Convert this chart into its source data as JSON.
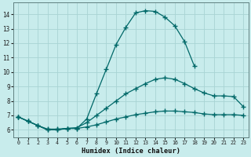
{
  "xlabel": "Humidex (Indice chaleur)",
  "bg_color": "#c8ecec",
  "line_color": "#006868",
  "grid_color": "#a8d4d4",
  "spine_color": "#608080",
  "xlim": [
    -0.5,
    23.5
  ],
  "ylim": [
    5.5,
    14.8
  ],
  "xticks": [
    0,
    1,
    2,
    3,
    4,
    5,
    6,
    7,
    8,
    9,
    10,
    11,
    12,
    13,
    14,
    15,
    16,
    17,
    18,
    19,
    20,
    21,
    22,
    23
  ],
  "yticks": [
    6,
    7,
    8,
    9,
    10,
    11,
    12,
    13,
    14
  ],
  "line1_x": [
    0,
    1,
    2,
    3,
    4,
    5,
    6,
    7,
    8,
    9,
    10,
    11,
    12,
    13,
    14,
    15,
    16,
    17,
    18
  ],
  "line1_y": [
    6.9,
    6.6,
    6.3,
    6.0,
    6.0,
    6.1,
    6.1,
    6.75,
    8.5,
    10.2,
    11.9,
    13.1,
    14.1,
    14.25,
    14.2,
    13.8,
    13.2,
    12.1,
    10.4
  ],
  "line2_x": [
    0,
    1,
    2,
    3,
    4,
    5,
    6,
    7,
    8,
    9,
    10,
    11,
    12,
    13,
    14,
    15,
    16,
    17,
    18,
    19,
    20,
    21,
    22,
    23
  ],
  "line2_y": [
    6.9,
    6.6,
    6.3,
    6.05,
    6.05,
    6.1,
    6.15,
    6.5,
    7.0,
    7.5,
    8.0,
    8.5,
    8.85,
    9.2,
    9.5,
    9.6,
    9.5,
    9.2,
    8.85,
    8.55,
    8.35,
    8.35,
    8.3,
    7.6
  ],
  "line3_x": [
    0,
    1,
    2,
    3,
    4,
    5,
    6,
    7,
    8,
    9,
    10,
    11,
    12,
    13,
    14,
    15,
    16,
    17,
    18,
    19,
    20,
    21,
    22,
    23
  ],
  "line3_y": [
    6.9,
    6.6,
    6.3,
    6.0,
    6.0,
    6.1,
    6.1,
    6.2,
    6.35,
    6.55,
    6.75,
    6.9,
    7.05,
    7.15,
    7.25,
    7.3,
    7.3,
    7.25,
    7.2,
    7.1,
    7.05,
    7.05,
    7.05,
    7.0
  ]
}
